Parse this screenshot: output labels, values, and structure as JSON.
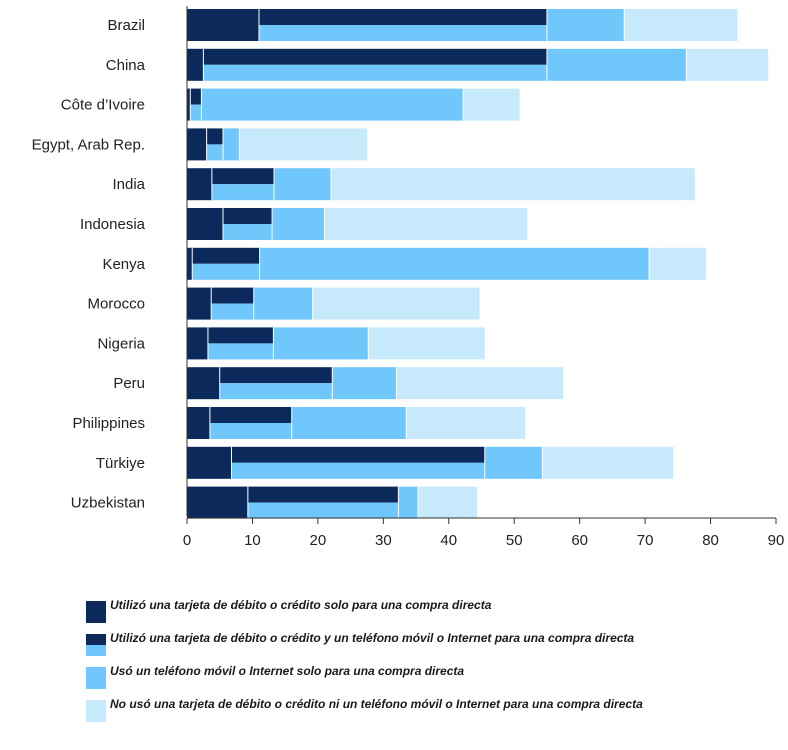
{
  "colors": {
    "dark": "#0b2a5b",
    "mid": "#6fc7fb",
    "light": "#c6e9fb",
    "axis": "#333333"
  },
  "legend": [
    {
      "label": "Utilizó una tarjeta de débito o crédito solo para una compra directa",
      "swatch": "dark"
    },
    {
      "label": "Utilizó una tarjeta de débito o crédito y un teléfono móvil o Internet para una compra directa",
      "swatch": "split"
    },
    {
      "label": "Usó un teléfono móvil o Internet solo para una compra directa",
      "swatch": "mid"
    },
    {
      "label": "No usó una tarjeta de débito o crédito ni un teléfono móvil o Internet para una compra directa",
      "swatch": "light"
    }
  ],
  "chart_data": {
    "type": "bar",
    "orientation": "horizontal",
    "stacked": true,
    "categories": [
      "Brazil",
      "China",
      "Côte d’Ivoire",
      "Egypt, Arab Rep.",
      "India",
      "Indonesia",
      "Kenya",
      "Morocco",
      "Nigeria",
      "Peru",
      "Philippines",
      "Türkiye",
      "Uzbekistan"
    ],
    "series": [
      {
        "name": "Utilizó una tarjeta de débito o crédito solo para una compra directa",
        "values": [
          11,
          2.5,
          0.5,
          3,
          3.8,
          5.5,
          0.8,
          3.7,
          3.2,
          5,
          3.5,
          6.8,
          9.3
        ]
      },
      {
        "name": "Utilizó una tarjeta de débito o crédito y un teléfono móvil o Internet para una compra directa",
        "values": [
          44,
          52.5,
          1.7,
          2.5,
          9.5,
          7.5,
          10.3,
          6.5,
          10,
          17.2,
          12.5,
          38.7,
          23
        ]
      },
      {
        "name": "Usó un teléfono móvil o Internet solo para una compra directa",
        "values": [
          11.8,
          21.3,
          40,
          2.5,
          8.7,
          8,
          59.5,
          9,
          14.5,
          9.8,
          17.5,
          8.8,
          3
        ]
      },
      {
        "name": "No usó una tarjeta de débito o crédito ni un teléfono móvil o Internet para una compra directa",
        "values": [
          17.3,
          12.5,
          8.6,
          19.5,
          55.6,
          31,
          8.7,
          25.5,
          17.8,
          25.5,
          18.2,
          20,
          9
        ]
      }
    ],
    "x_ticks": [
      0,
      10,
      20,
      30,
      40,
      50,
      60,
      70,
      80,
      90
    ],
    "xlim": [
      0,
      90
    ],
    "title": "",
    "xlabel": "",
    "ylabel": "",
    "grid": false,
    "legend_position": "bottom"
  }
}
